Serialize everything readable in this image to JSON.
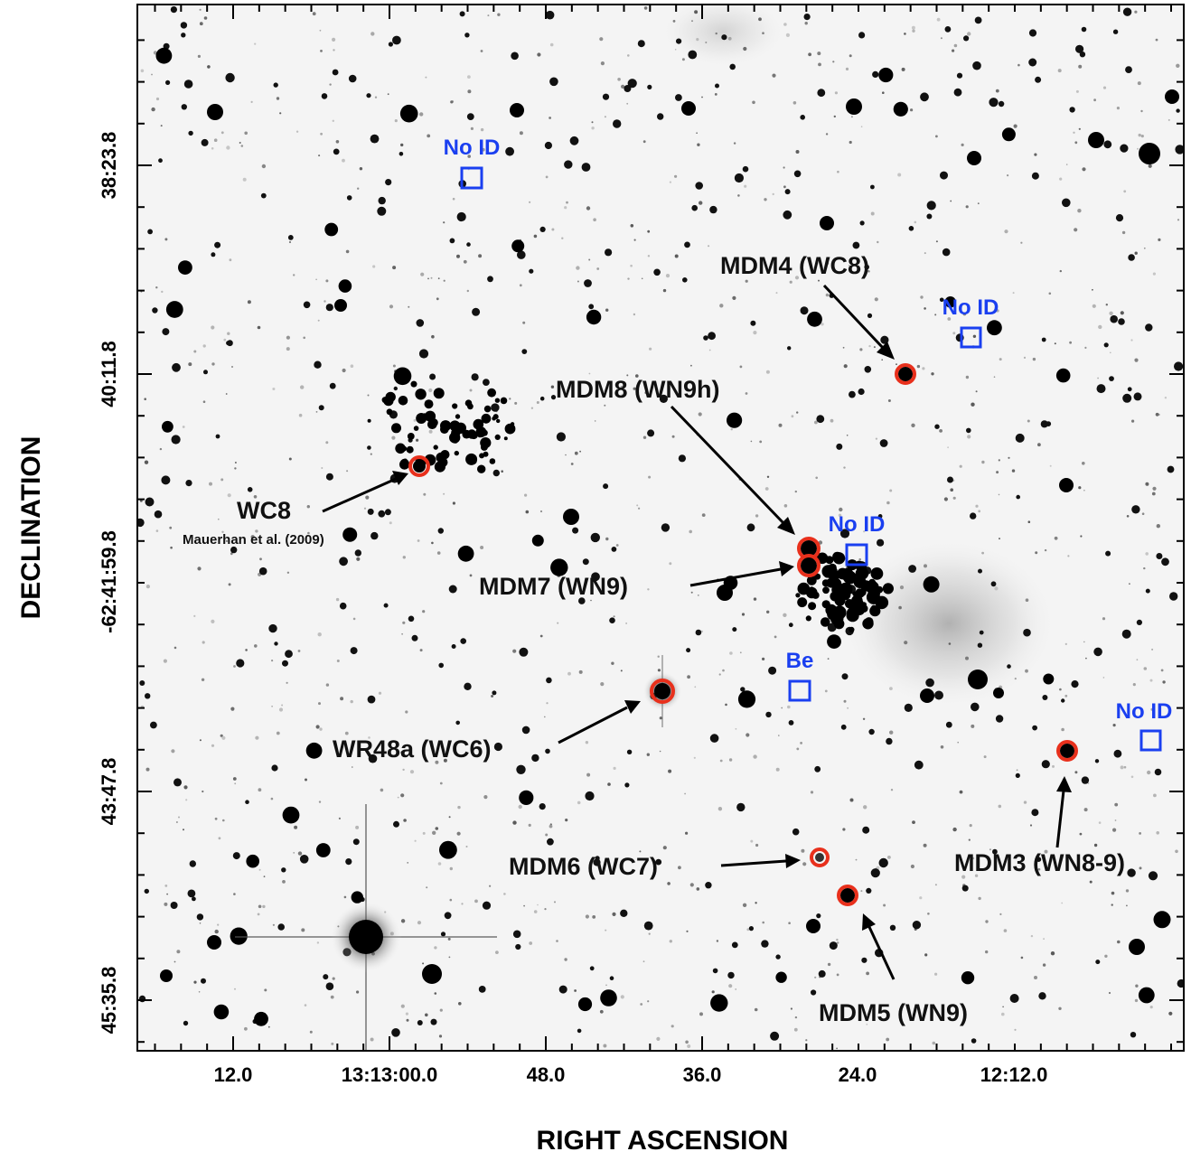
{
  "axes": {
    "xlabel": "RIGHT ASCENSION",
    "ylabel": "DECLINATION",
    "x_ticks": [
      "12.0",
      "13:13:00.0",
      "48.0",
      "36.0",
      "24.0",
      "12:12.0"
    ],
    "y_ticks": [
      "38:23.8",
      "40:11.8",
      "-62:41:59.8",
      "43:47.8",
      "45:35.8"
    ]
  },
  "colors": {
    "marker_ring": "#e8301c",
    "box": "#1a3ff0",
    "background": "#f4f4f4",
    "stars": "#000000"
  },
  "labeled_stars": [
    {
      "id": "mdm4",
      "label": "MDM4 (WC8)"
    },
    {
      "id": "mdm8",
      "label": "MDM8 (WN9h)"
    },
    {
      "id": "mdm7",
      "label": "MDM7 (WN9)"
    },
    {
      "id": "wc8",
      "label": "WC8",
      "sublabel": "Mauerhan et al. (2009)"
    },
    {
      "id": "wr48a",
      "label": "WR48a (WC6)"
    },
    {
      "id": "mdm6",
      "label": "MDM6 (WC7)"
    },
    {
      "id": "mdm5",
      "label": "MDM5 (WN9)"
    },
    {
      "id": "mdm3",
      "label": "MDM3 (WN8-9)"
    }
  ],
  "boxes": [
    {
      "id": "noid1",
      "label": "No ID"
    },
    {
      "id": "noid2",
      "label": "No ID"
    },
    {
      "id": "noid3",
      "label": "No ID"
    },
    {
      "id": "be",
      "label": "Be"
    },
    {
      "id": "noid4",
      "label": "No ID"
    }
  ]
}
